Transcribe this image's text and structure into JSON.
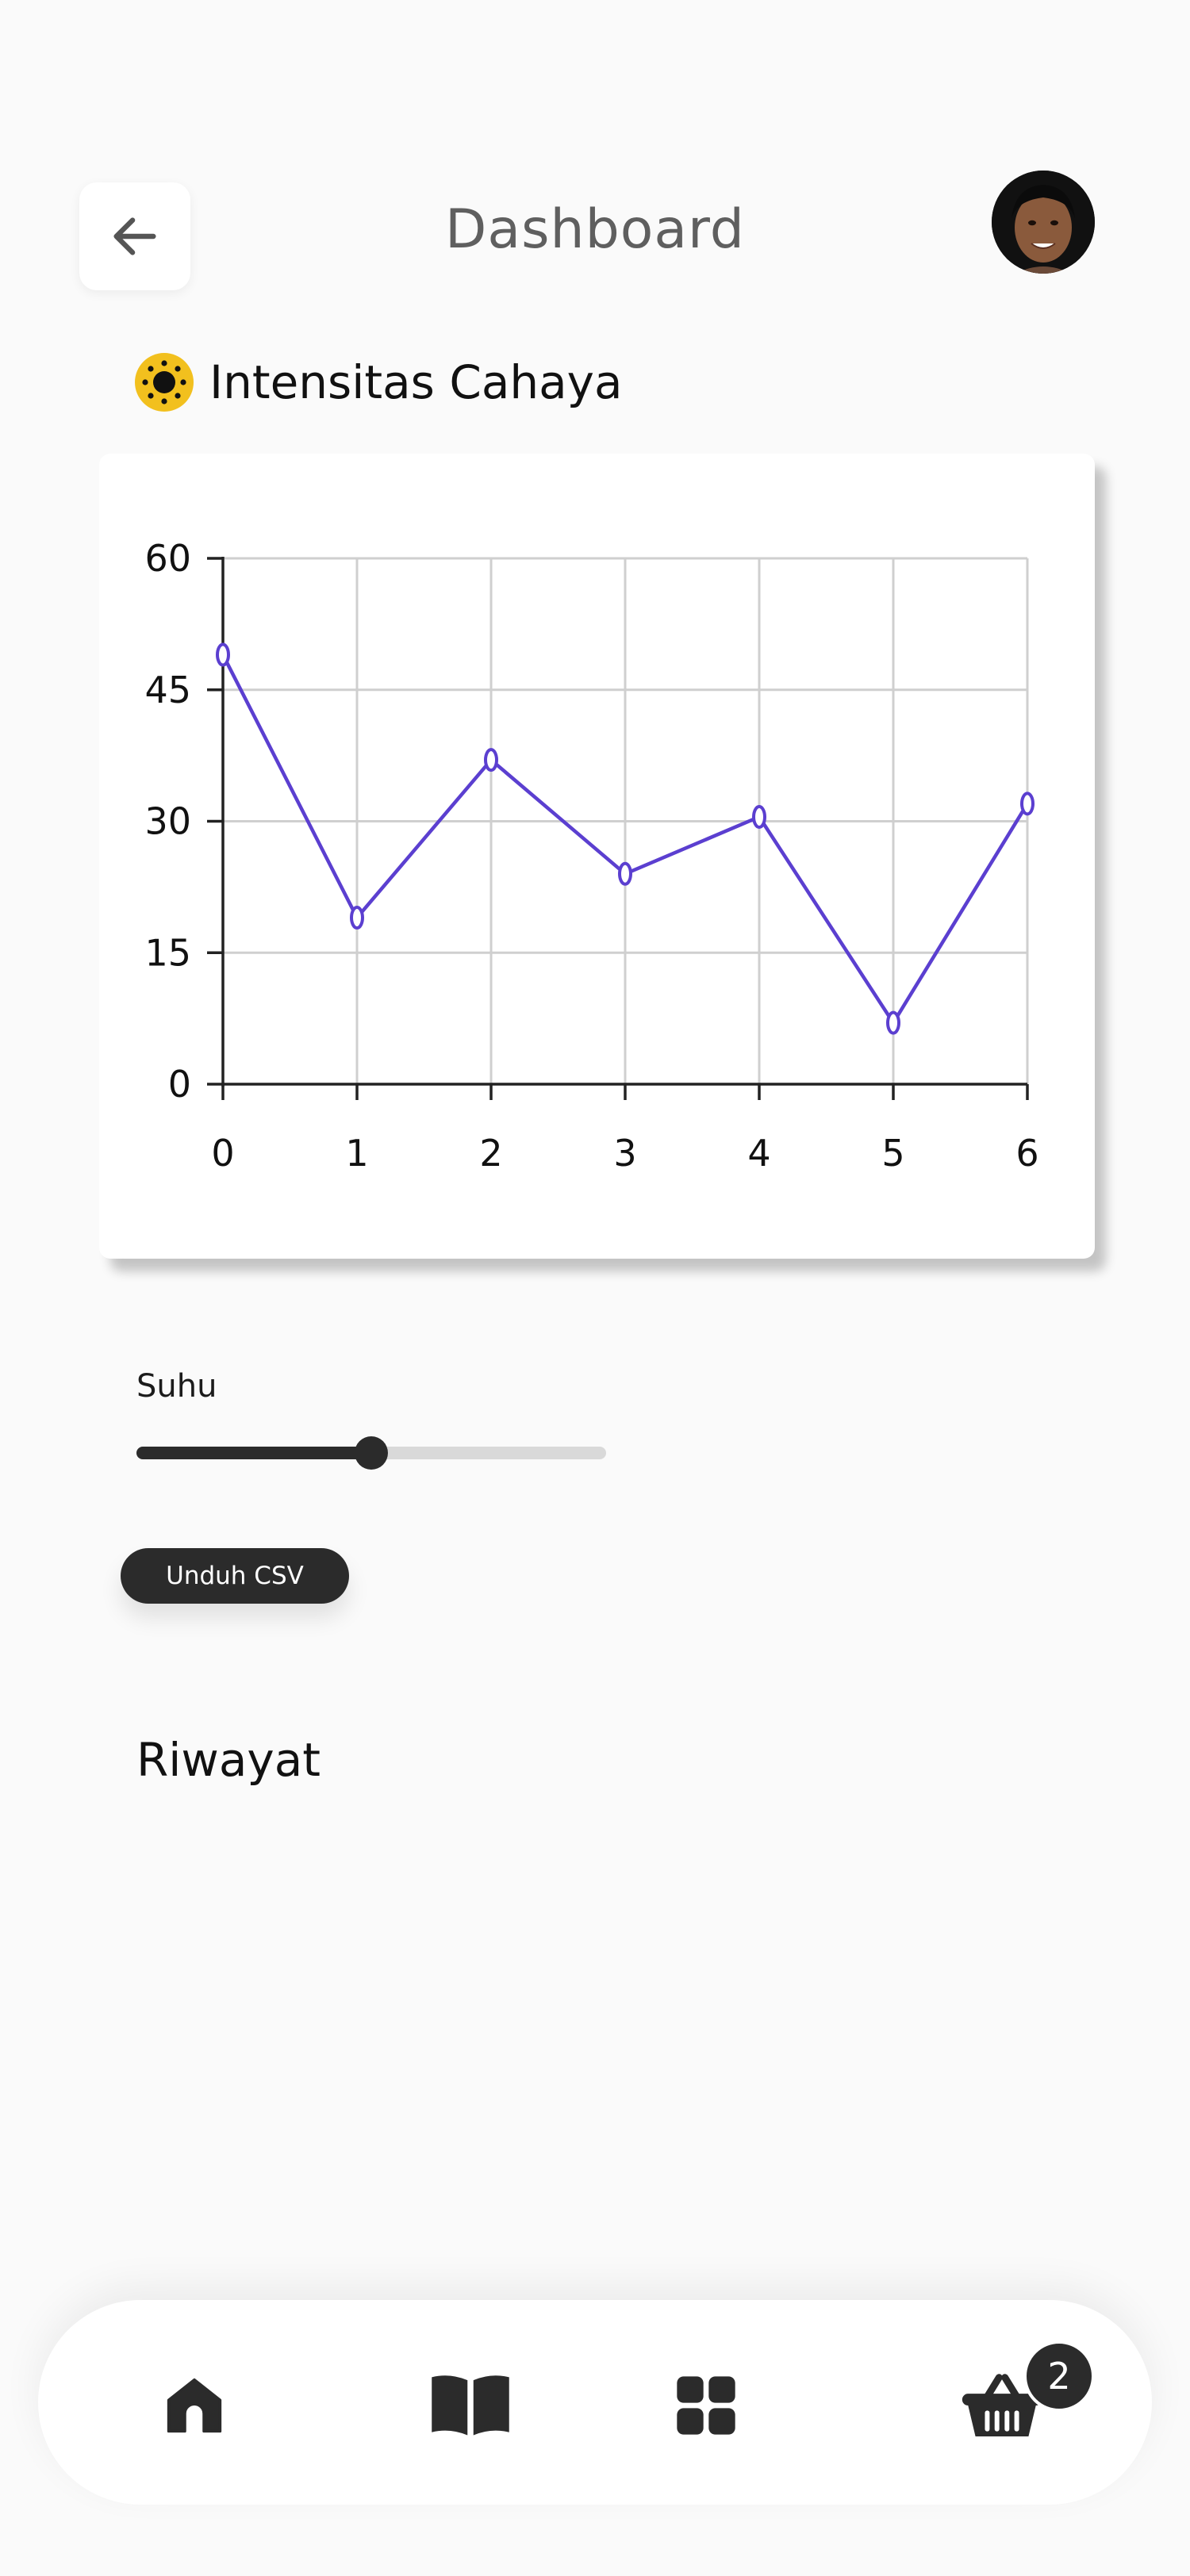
{
  "header": {
    "title": "Dashboard",
    "back_icon": "arrow-left-icon",
    "avatar_icon": "user-avatar"
  },
  "section": {
    "title": "Intensitas Cahaya",
    "icon": "sun-icon"
  },
  "chart_data": {
    "type": "line",
    "x": [
      0,
      1,
      2,
      3,
      4,
      5,
      6
    ],
    "series": [
      {
        "values": [
          49,
          19,
          37,
          24,
          30.5,
          7,
          32
        ],
        "color": "#5b3fd0"
      }
    ],
    "xlim": [
      0,
      6
    ],
    "ylim": [
      0,
      60
    ],
    "x_ticks": [
      "0",
      "1",
      "2",
      "3",
      "4",
      "5",
      "6"
    ],
    "y_ticks": [
      "0",
      "15",
      "30",
      "45",
      "60"
    ],
    "grid": true,
    "title": "",
    "xlabel": "",
    "ylabel": ""
  },
  "slider": {
    "label": "Suhu",
    "value_fraction": 0.5
  },
  "actions": {
    "download_csv": "Unduh CSV"
  },
  "history": {
    "title": "Riwayat"
  },
  "bottom_nav": {
    "items": [
      "home-icon",
      "book-icon",
      "grid-icon",
      "basket-icon"
    ],
    "basket_badge": "2"
  },
  "colors": {
    "accent": "#5b3fd0",
    "dark": "#2b2b2b",
    "sun": "#f2c01e"
  }
}
